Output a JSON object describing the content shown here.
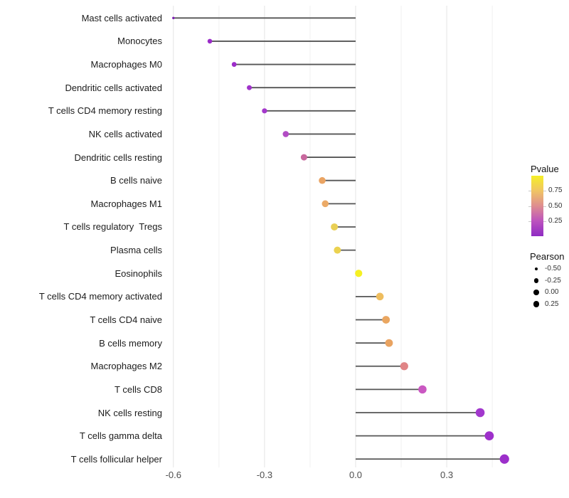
{
  "chart_data": {
    "type": "scatter",
    "subtype": "lollipop-horizontal",
    "title": "",
    "xlabel": "",
    "ylabel": "",
    "x_tick_labels": [
      "-0.6",
      "-0.3",
      "0.0",
      "0.3"
    ],
    "x_tick_values": [
      -0.6,
      -0.3,
      0.0,
      0.3
    ],
    "x_minor_gridlines": [
      -0.45,
      -0.15,
      0.15,
      0.45
    ],
    "xlim": [
      -0.66,
      0.55
    ],
    "grid": "vertical-only",
    "baseline_x": 0,
    "points": [
      {
        "label": "Mast cells activated",
        "pearson": -0.6,
        "dot_color": "#7d1bb4",
        "dot_radius": 1.7
      },
      {
        "label": "Monocytes",
        "pearson": -0.48,
        "dot_color": "#9a2bc8",
        "dot_radius": 3.3
      },
      {
        "label": "Macrophages M0",
        "pearson": -0.4,
        "dot_color": "#9c2dc9",
        "dot_radius": 3.4
      },
      {
        "label": "Dendritic cells activated",
        "pearson": -0.35,
        "dot_color": "#a033ca",
        "dot_radius": 3.5
      },
      {
        "label": "T cells CD4 memory resting",
        "pearson": -0.3,
        "dot_color": "#a438cb",
        "dot_radius": 3.6
      },
      {
        "label": "NK cells activated",
        "pearson": -0.23,
        "dot_color": "#b24cc4",
        "dot_radius": 4.3
      },
      {
        "label": "Dendritic cells resting",
        "pearson": -0.17,
        "dot_color": "#c8689e",
        "dot_radius": 4.5
      },
      {
        "label": "B cells naive",
        "pearson": -0.11,
        "dot_color": "#eaa463",
        "dot_radius": 4.8
      },
      {
        "label": "Macrophages M1",
        "pearson": -0.1,
        "dot_color": "#ebaa67",
        "dot_radius": 4.8
      },
      {
        "label": "T cells regulatory  Tregs",
        "pearson": -0.07,
        "dot_color": "#e9cf55",
        "dot_radius": 5.0
      },
      {
        "label": "Plasma cells",
        "pearson": -0.06,
        "dot_color": "#ebd250",
        "dot_radius": 5.0
      },
      {
        "label": "Eosinophils",
        "pearson": 0.01,
        "dot_color": "#f5f022",
        "dot_radius": 5.1
      },
      {
        "label": "T cells CD4 memory activated",
        "pearson": 0.08,
        "dot_color": "#eebd5e",
        "dot_radius": 5.3
      },
      {
        "label": "T cells CD4 naive",
        "pearson": 0.1,
        "dot_color": "#eaa660",
        "dot_radius": 5.4
      },
      {
        "label": "B cells memory",
        "pearson": 0.11,
        "dot_color": "#e9a361",
        "dot_radius": 5.4
      },
      {
        "label": "Macrophages M2",
        "pearson": 0.16,
        "dot_color": "#e08486",
        "dot_radius": 5.6
      },
      {
        "label": "T cells CD8",
        "pearson": 0.22,
        "dot_color": "#ca58c2",
        "dot_radius": 5.8
      },
      {
        "label": "NK cells resting",
        "pearson": 0.41,
        "dot_color": "#a238cd",
        "dot_radius": 6.3
      },
      {
        "label": "T cells gamma delta",
        "pearson": 0.44,
        "dot_color": "#9e30cb",
        "dot_radius": 6.4
      },
      {
        "label": "T cells follicular helper",
        "pearson": 0.49,
        "dot_color": "#9c2fca",
        "dot_radius": 6.6
      }
    ],
    "legends": {
      "pvalue": {
        "title": "Pvalue",
        "tick_labels": [
          "0.75",
          "0.50",
          "0.25"
        ],
        "tick_values": [
          0.75,
          0.5,
          0.25
        ],
        "range": [
          0,
          1
        ],
        "gradient_top_to_bottom": [
          "#f5ef27",
          "#f0c464",
          "#de8d90",
          "#bc53be",
          "#8e2bc3"
        ]
      },
      "pearson": {
        "title": "Pearson",
        "dot_color": "#000000",
        "entries": [
          {
            "label": "-0.50",
            "radius": 2.3
          },
          {
            "label": "-0.25",
            "radius": 3.2
          },
          {
            "label": "0.00",
            "radius": 3.8
          },
          {
            "label": "0.25",
            "radius": 4.3
          }
        ]
      }
    },
    "colors": {
      "segment": "#555555",
      "grid_major": "#e4e4e4",
      "grid_minor": "#f0f0f0",
      "axis_text": "#4d4d4d",
      "category_text": "#1c1c1c",
      "background": "#ffffff"
    }
  }
}
